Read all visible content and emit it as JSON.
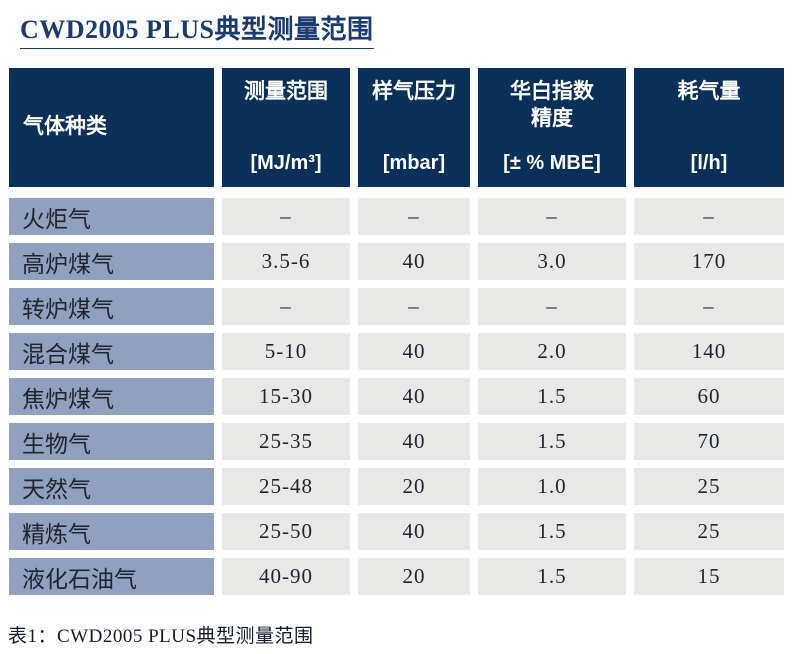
{
  "page": {
    "title": "CWD2005 PLUS典型测量范围",
    "caption": "表1：CWD2005 PLUS典型测量范围"
  },
  "colors": {
    "header_bg": "#0a3059",
    "header_text": "#ffffff",
    "row_label_bg": "#8fa1bf",
    "value_cell_bg": "#e8e8e6",
    "title_text": "#1a3a70",
    "body_text": "#1d2330"
  },
  "chart_data": {
    "type": "table",
    "title": "CWD2005 PLUS典型测量范围",
    "caption": "表1：CWD2005 PLUS典型测量范围",
    "columns": [
      {
        "label": "气体种类",
        "unit": ""
      },
      {
        "label": "测量范围",
        "unit": "[MJ/m³]"
      },
      {
        "label": "样气压力",
        "unit": "[mbar]"
      },
      {
        "label": "华白指数\n精度",
        "unit": "[± % MBE]"
      },
      {
        "label": "耗气量",
        "unit": "[l/h]"
      }
    ],
    "rows": [
      {
        "gas": "火炬气",
        "values": [
          "–",
          "–",
          "–",
          "–"
        ]
      },
      {
        "gas": "高炉煤气",
        "values": [
          "3.5-6",
          "40",
          "3.0",
          "170"
        ]
      },
      {
        "gas": "转炉煤气",
        "values": [
          "–",
          "–",
          "–",
          "–"
        ]
      },
      {
        "gas": "混合煤气",
        "values": [
          "5-10",
          "40",
          "2.0",
          "140"
        ]
      },
      {
        "gas": "焦炉煤气",
        "values": [
          "15-30",
          "40",
          "1.5",
          "60"
        ]
      },
      {
        "gas": "生物气",
        "values": [
          "25-35",
          "40",
          "1.5",
          "70"
        ]
      },
      {
        "gas": "天然气",
        "values": [
          "25-48",
          "20",
          "1.0",
          "25"
        ]
      },
      {
        "gas": "精炼气",
        "values": [
          "25-50",
          "40",
          "1.5",
          "25"
        ]
      },
      {
        "gas": "液化石油气",
        "values": [
          "40-90",
          "20",
          "1.5",
          "15"
        ]
      }
    ]
  }
}
